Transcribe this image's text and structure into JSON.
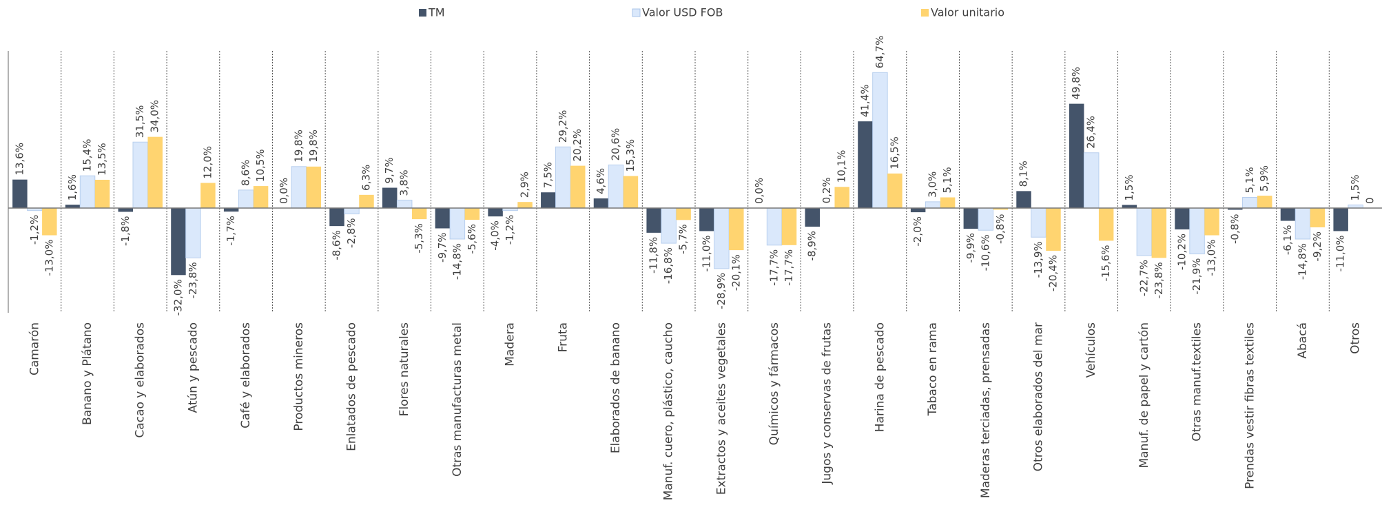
{
  "chart_data": {
    "type": "bar",
    "categories": [
      "Camarón",
      "Banano y Plátano",
      "Cacao y elaborados",
      "Atún y pescado",
      "Café y elaborados",
      "Productos mineros",
      "Enlatados de pescado",
      "Flores naturales",
      "Otras manufacturas metal",
      "Madera",
      "Fruta",
      "Elaborados de banano",
      "Manuf. cuero, plástico, caucho",
      "Extractos y aceites vegetales",
      "Químicos y fármacos",
      "Jugos y conservas de frutas",
      "Harina de pescado",
      "Tabaco en rama",
      "Maderas terciadas, prensadas",
      "Otros elaborados del mar",
      "Vehículos",
      "Manuf. de papel y cartón",
      "Otras manuf.textiles",
      "Prendas vestir fibras textiles",
      "Abacá",
      "Otros"
    ],
    "series": [
      {
        "name": "TM",
        "color": "#44546a",
        "values": [
          13.6,
          1.6,
          -1.8,
          -32.0,
          -1.7,
          0.0,
          -8.6,
          9.7,
          -9.7,
          -4.0,
          7.5,
          4.6,
          -11.8,
          -11.0,
          0.0,
          -8.9,
          41.4,
          -2.0,
          -9.9,
          8.1,
          49.8,
          1.5,
          -10.2,
          -0.8,
          -6.1,
          -11.0
        ],
        "value_labels": [
          "13,6%",
          "1,6%",
          "-1,8%",
          "-32,0%",
          "-1,7%",
          "0,0%",
          "-8,6%",
          "9,7%",
          "-9,7%",
          "-4,0%",
          "7,5%",
          "4,6%",
          "-11,8%",
          "-11,0%",
          "0,0%",
          "-8,9%",
          "41,4%",
          "-2,0%",
          "-9,9%",
          "8,1%",
          "49,8%",
          "1,5%",
          "-10,2%",
          "-0,8%",
          "-6,1%",
          "-11,0%"
        ]
      },
      {
        "name": "Valor USD FOB",
        "color": "#dae8fb",
        "values": [
          -1.2,
          15.4,
          31.5,
          -23.8,
          8.6,
          19.8,
          -2.8,
          3.8,
          -14.8,
          -1.2,
          29.2,
          20.6,
          -16.8,
          -28.9,
          -17.7,
          0.2,
          64.7,
          3.0,
          -10.6,
          -13.9,
          26.4,
          -22.7,
          -21.9,
          5.1,
          -14.8,
          1.5
        ],
        "value_labels": [
          "-1,2%",
          "15,4%",
          "31,5%",
          "-23,8%",
          "8,6%",
          "19,8%",
          "-2,8%",
          "3,8%",
          "-14,8%",
          "-1,2%",
          "29,2%",
          "20,6%",
          "-16,8%",
          "-28,9%",
          "-17,7%",
          "0,2%",
          "64,7%",
          "3,0%",
          "-10,6%",
          "-13,9%",
          "26,4%",
          "-22,7%",
          "-21,9%",
          "5,1%",
          "-14,8%",
          "1,5%"
        ]
      },
      {
        "name": "Valor unitario",
        "color": "#ffd470",
        "values": [
          -13.0,
          13.5,
          34.0,
          12.0,
          10.5,
          19.8,
          6.3,
          -5.3,
          -5.6,
          2.9,
          20.2,
          15.3,
          -5.7,
          -20.1,
          -17.7,
          10.1,
          16.5,
          5.1,
          -0.8,
          -20.4,
          -15.6,
          -23.8,
          -13.0,
          5.9,
          -9.2,
          0
        ],
        "value_labels": [
          "-13,0%",
          "13,5%",
          "34,0%",
          "12,0%",
          "10,5%",
          "19,8%",
          "6,3%",
          "-5,3%",
          "-5,6%",
          "2,9%",
          "20,2%",
          "15,3%",
          "-5,7%",
          "-20,1%",
          "-17,7%",
          "10,1%",
          "16,5%",
          "5,1%",
          "-0,8%",
          "-20,4%",
          "-15,6%",
          "-23,8%",
          "-13,0%",
          "5,9%",
          "-9,2%",
          "0"
        ]
      }
    ],
    "ylim": [
      -50,
      75
    ]
  }
}
